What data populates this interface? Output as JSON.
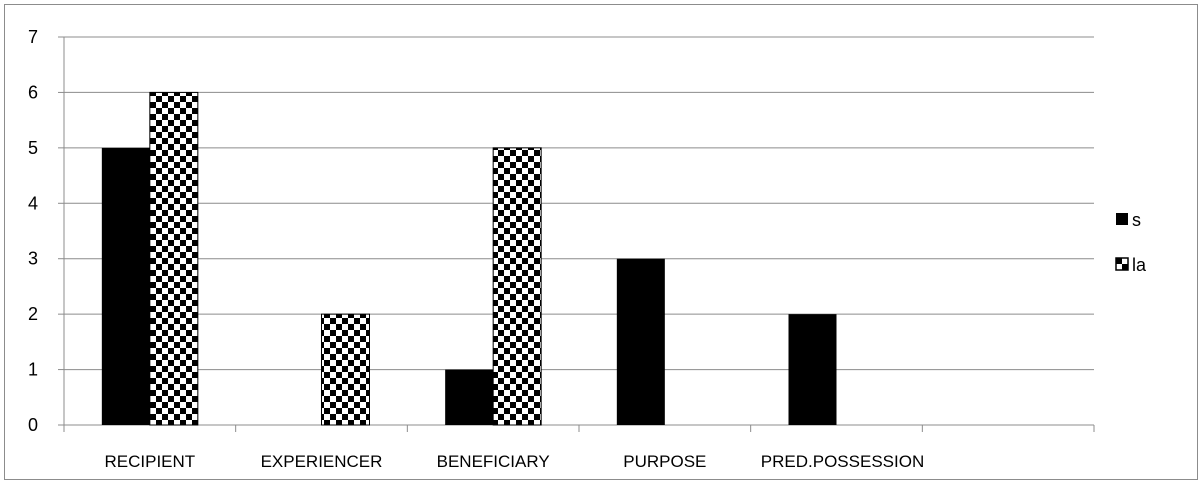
{
  "chart_data": {
    "type": "bar",
    "categories": [
      "RECIPIENT",
      "EXPERIENCER",
      "BENEFICIARY",
      "PURPOSE",
      "PRED.POSSESSION",
      ""
    ],
    "series": [
      {
        "name": "s",
        "values": [
          5,
          0,
          1,
          3,
          2,
          0
        ],
        "fill": "solid",
        "color": "#000000"
      },
      {
        "name": "la",
        "values": [
          6,
          2,
          5,
          0,
          0,
          0
        ],
        "fill": "checkerboard",
        "color": "#000000"
      }
    ],
    "ylim": [
      0,
      7
    ],
    "yticks": [
      "0",
      "1",
      "2",
      "3",
      "4",
      "5",
      "6",
      "7"
    ],
    "grid": true,
    "legend_position": "right",
    "title": "",
    "xlabel": "",
    "ylabel": ""
  }
}
